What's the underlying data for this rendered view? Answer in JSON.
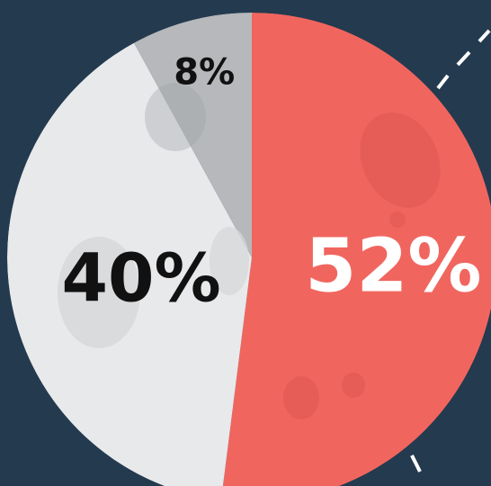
{
  "chart_data": {
    "type": "pie",
    "slices": [
      {
        "label": "52%",
        "value": 52,
        "color": "#f0665f",
        "text_color": "#ffffff"
      },
      {
        "label": "40%",
        "value": 40,
        "color": "#e8e9eb",
        "text_color": "#111111"
      },
      {
        "label": "8%",
        "value": 8,
        "color": "#b6b8bb",
        "text_color": "#111111"
      }
    ],
    "start": "top",
    "direction": "clockwise"
  },
  "colors": {
    "background": "#243a4f",
    "dashes": "#ffffff"
  }
}
